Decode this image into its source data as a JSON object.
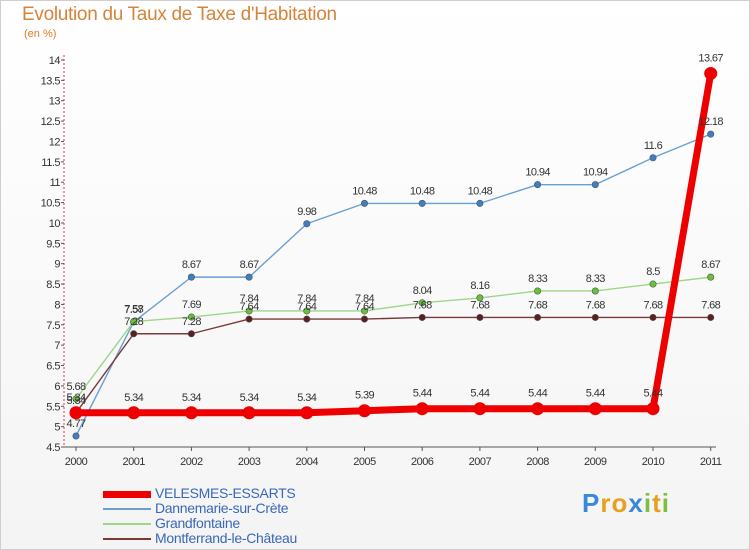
{
  "chart_data": {
    "type": "line",
    "title": "Evolution du Taux de Taxe d'Habitation",
    "subtitle": "(en %)",
    "x": [
      "2000",
      "2001",
      "2002",
      "2003",
      "2004",
      "2005",
      "2006",
      "2007",
      "2008",
      "2009",
      "2010",
      "2011"
    ],
    "ylim": [
      4.5,
      14
    ],
    "yticks": [
      "4.5",
      "5",
      "5.5",
      "6",
      "6.5",
      "7",
      "7.5",
      "8",
      "8.5",
      "9",
      "9.5",
      "10",
      "10.5",
      "11",
      "11.5",
      "12",
      "12.5",
      "13",
      "13.5",
      "14"
    ],
    "grid": "off",
    "legend_position": "bottom-left",
    "series": [
      {
        "name": "Dannemarie-sur-Crète",
        "color": "#6a9fd4",
        "marker_color": "#3d7fc4",
        "values": [
          4.77,
          7.57,
          8.67,
          8.67,
          9.98,
          10.48,
          10.48,
          10.48,
          10.94,
          10.94,
          11.6,
          12.18
        ],
        "labels": [
          "4.77",
          "7.57",
          "8.67",
          "8.67",
          "9.98",
          "10.48",
          "10.48",
          "10.48",
          "10.94",
          "10.94",
          "11.6",
          "12.18"
        ]
      },
      {
        "name": "Grandfontaine",
        "color": "#9ed68a",
        "marker_color": "#66c23a",
        "values": [
          5.68,
          7.58,
          7.69,
          7.84,
          7.84,
          7.84,
          8.04,
          8.16,
          8.33,
          8.33,
          8.5,
          8.67
        ],
        "labels": [
          "5.68",
          "7.58",
          "7.69",
          "7.84",
          "7.84",
          "7.84",
          "8.04",
          "8.16",
          "8.33",
          "8.33",
          "8.5",
          "8.67"
        ]
      },
      {
        "name": "Montferrand-le-Château",
        "color": "#7a3a3a",
        "marker_color": "#5a2020",
        "values": [
          5.34,
          7.28,
          7.28,
          7.64,
          7.64,
          7.64,
          7.68,
          7.68,
          7.68,
          7.68,
          7.68,
          7.68
        ],
        "labels": [
          "5.34",
          "7.28",
          "7.28",
          "7.64",
          "7.64",
          "7.64",
          "7.68",
          "7.68",
          "7.68",
          "7.68",
          "7.68",
          "7.68"
        ]
      },
      {
        "name": "VELESMES-ESSARTS",
        "color": "#ee0000",
        "marker_color": "#ee0000",
        "values": [
          5.34,
          5.34,
          5.34,
          5.34,
          5.34,
          5.39,
          5.44,
          5.44,
          5.44,
          5.44,
          5.44,
          13.67
        ],
        "labels": [
          "5.34",
          "5.34",
          "5.34",
          "5.34",
          "5.34",
          "5.39",
          "5.44",
          "5.44",
          "5.44",
          "5.44",
          "5.44",
          "13.67"
        ]
      }
    ],
    "legend": [
      {
        "name": "VELESMES-ESSARTS",
        "color": "#ee0000"
      },
      {
        "name": "Dannemarie-sur-Crète",
        "color": "#6a9fd4"
      },
      {
        "name": "Grandfontaine",
        "color": "#9ed68a"
      },
      {
        "name": "Montferrand-le-Château",
        "color": "#7a3a3a"
      }
    ]
  },
  "logo": {
    "letters": [
      "P",
      "r",
      "o",
      "x",
      "i",
      "t",
      "i"
    ],
    "colors": [
      "#3a88d8",
      "#e8a020",
      "#e8a020",
      "#3a88d8",
      "#7cc040",
      "#e8a020",
      "#7cc040"
    ]
  }
}
